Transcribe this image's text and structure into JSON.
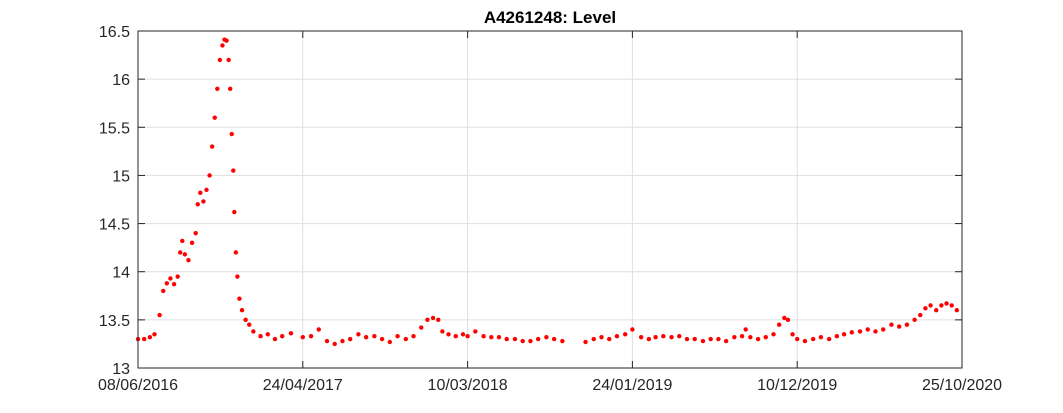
{
  "chart_data": {
    "type": "scatter",
    "title": "A4261248: Level",
    "xlabel": "",
    "ylabel": "",
    "x_axis_type": "date",
    "xlim": [
      "2016-06-08",
      "2020-10-25"
    ],
    "ylim": [
      13,
      16.5
    ],
    "x_ticks": [
      "2016-06-08",
      "2017-04-24",
      "2018-03-10",
      "2019-01-24",
      "2019-12-10",
      "2020-10-25"
    ],
    "x_tick_labels": [
      "08/06/2016",
      "24/04/2017",
      "10/03/2018",
      "24/01/2019",
      "10/12/2019",
      "25/10/2020"
    ],
    "y_ticks": [
      13,
      13.5,
      14,
      14.5,
      15,
      15.5,
      16,
      16.5
    ],
    "y_tick_labels": [
      "13",
      "13.5",
      "14",
      "14.5",
      "15",
      "15.5",
      "16",
      "16.5"
    ],
    "grid": true,
    "marker_color": "#ff0000",
    "series": [
      {
        "points": [
          [
            "2016-06-08",
            13.3
          ],
          [
            "2016-06-20",
            13.3
          ],
          [
            "2016-07-01",
            13.32
          ],
          [
            "2016-07-10",
            13.35
          ],
          [
            "2016-07-20",
            13.55
          ],
          [
            "2016-07-27",
            13.8
          ],
          [
            "2016-08-03",
            13.88
          ],
          [
            "2016-08-10",
            13.93
          ],
          [
            "2016-08-17",
            13.87
          ],
          [
            "2016-08-24",
            13.95
          ],
          [
            "2016-08-29",
            14.2
          ],
          [
            "2016-09-02",
            14.32
          ],
          [
            "2016-09-07",
            14.18
          ],
          [
            "2016-09-14",
            14.12
          ],
          [
            "2016-09-21",
            14.3
          ],
          [
            "2016-09-28",
            14.4
          ],
          [
            "2016-10-02",
            14.7
          ],
          [
            "2016-10-07",
            14.82
          ],
          [
            "2016-10-13",
            14.73
          ],
          [
            "2016-10-19",
            14.85
          ],
          [
            "2016-10-25",
            15.0
          ],
          [
            "2016-10-30",
            15.3
          ],
          [
            "2016-11-04",
            15.6
          ],
          [
            "2016-11-09",
            15.9
          ],
          [
            "2016-11-14",
            16.2
          ],
          [
            "2016-11-19",
            16.35
          ],
          [
            "2016-11-23",
            16.41
          ],
          [
            "2016-11-27",
            16.4
          ],
          [
            "2016-12-01",
            16.2
          ],
          [
            "2016-12-04",
            15.9
          ],
          [
            "2016-12-07",
            15.43
          ],
          [
            "2016-12-10",
            15.05
          ],
          [
            "2016-12-12",
            14.62
          ],
          [
            "2016-12-15",
            14.2
          ],
          [
            "2016-12-18",
            13.95
          ],
          [
            "2016-12-22",
            13.72
          ],
          [
            "2016-12-27",
            13.6
          ],
          [
            "2017-01-03",
            13.5
          ],
          [
            "2017-01-10",
            13.45
          ],
          [
            "2017-01-18",
            13.38
          ],
          [
            "2017-02-01",
            13.33
          ],
          [
            "2017-02-15",
            13.35
          ],
          [
            "2017-03-01",
            13.3
          ],
          [
            "2017-03-15",
            13.33
          ],
          [
            "2017-04-01",
            13.36
          ],
          [
            "2017-04-24",
            13.32
          ],
          [
            "2017-05-10",
            13.33
          ],
          [
            "2017-05-25",
            13.4
          ],
          [
            "2017-06-10",
            13.28
          ],
          [
            "2017-06-25",
            13.25
          ],
          [
            "2017-07-10",
            13.28
          ],
          [
            "2017-07-25",
            13.3
          ],
          [
            "2017-08-10",
            13.35
          ],
          [
            "2017-08-25",
            13.32
          ],
          [
            "2017-09-10",
            13.33
          ],
          [
            "2017-09-25",
            13.3
          ],
          [
            "2017-10-10",
            13.27
          ],
          [
            "2017-10-25",
            13.33
          ],
          [
            "2017-11-10",
            13.3
          ],
          [
            "2017-11-25",
            13.33
          ],
          [
            "2017-12-10",
            13.42
          ],
          [
            "2017-12-22",
            13.5
          ],
          [
            "2018-01-02",
            13.52
          ],
          [
            "2018-01-12",
            13.5
          ],
          [
            "2018-01-20",
            13.38
          ],
          [
            "2018-02-01",
            13.35
          ],
          [
            "2018-02-15",
            13.33
          ],
          [
            "2018-03-01",
            13.35
          ],
          [
            "2018-03-10",
            13.33
          ],
          [
            "2018-03-25",
            13.38
          ],
          [
            "2018-04-10",
            13.33
          ],
          [
            "2018-04-25",
            13.32
          ],
          [
            "2018-05-10",
            13.32
          ],
          [
            "2018-05-25",
            13.3
          ],
          [
            "2018-06-10",
            13.3
          ],
          [
            "2018-06-25",
            13.28
          ],
          [
            "2018-07-10",
            13.28
          ],
          [
            "2018-07-25",
            13.3
          ],
          [
            "2018-08-10",
            13.32
          ],
          [
            "2018-08-25",
            13.3
          ],
          [
            "2018-09-10",
            13.28
          ],
          [
            "2018-10-25",
            13.27
          ],
          [
            "2018-11-10",
            13.3
          ],
          [
            "2018-11-25",
            13.32
          ],
          [
            "2018-12-10",
            13.3
          ],
          [
            "2018-12-25",
            13.33
          ],
          [
            "2019-01-10",
            13.35
          ],
          [
            "2019-01-24",
            13.4
          ],
          [
            "2019-02-10",
            13.32
          ],
          [
            "2019-02-25",
            13.3
          ],
          [
            "2019-03-10",
            13.32
          ],
          [
            "2019-03-25",
            13.33
          ],
          [
            "2019-04-10",
            13.32
          ],
          [
            "2019-04-25",
            13.33
          ],
          [
            "2019-05-10",
            13.3
          ],
          [
            "2019-05-25",
            13.3
          ],
          [
            "2019-06-10",
            13.28
          ],
          [
            "2019-06-25",
            13.3
          ],
          [
            "2019-07-10",
            13.3
          ],
          [
            "2019-07-25",
            13.28
          ],
          [
            "2019-08-10",
            13.32
          ],
          [
            "2019-08-25",
            13.33
          ],
          [
            "2019-09-01",
            13.4
          ],
          [
            "2019-09-10",
            13.32
          ],
          [
            "2019-09-25",
            13.3
          ],
          [
            "2019-10-10",
            13.32
          ],
          [
            "2019-10-25",
            13.35
          ],
          [
            "2019-11-05",
            13.45
          ],
          [
            "2019-11-15",
            13.52
          ],
          [
            "2019-11-22",
            13.5
          ],
          [
            "2019-12-01",
            13.35
          ],
          [
            "2019-12-10",
            13.3
          ],
          [
            "2019-12-25",
            13.28
          ],
          [
            "2020-01-10",
            13.3
          ],
          [
            "2020-01-25",
            13.32
          ],
          [
            "2020-02-10",
            13.3
          ],
          [
            "2020-02-25",
            13.33
          ],
          [
            "2020-03-10",
            13.35
          ],
          [
            "2020-03-25",
            13.37
          ],
          [
            "2020-04-10",
            13.38
          ],
          [
            "2020-04-25",
            13.4
          ],
          [
            "2020-05-10",
            13.38
          ],
          [
            "2020-05-25",
            13.4
          ],
          [
            "2020-06-10",
            13.45
          ],
          [
            "2020-06-25",
            13.43
          ],
          [
            "2020-07-10",
            13.45
          ],
          [
            "2020-07-25",
            13.5
          ],
          [
            "2020-08-05",
            13.55
          ],
          [
            "2020-08-15",
            13.62
          ],
          [
            "2020-08-25",
            13.65
          ],
          [
            "2020-09-05",
            13.6
          ],
          [
            "2020-09-15",
            13.65
          ],
          [
            "2020-09-25",
            13.67
          ],
          [
            "2020-10-05",
            13.65
          ],
          [
            "2020-10-15",
            13.6
          ]
        ]
      }
    ]
  }
}
